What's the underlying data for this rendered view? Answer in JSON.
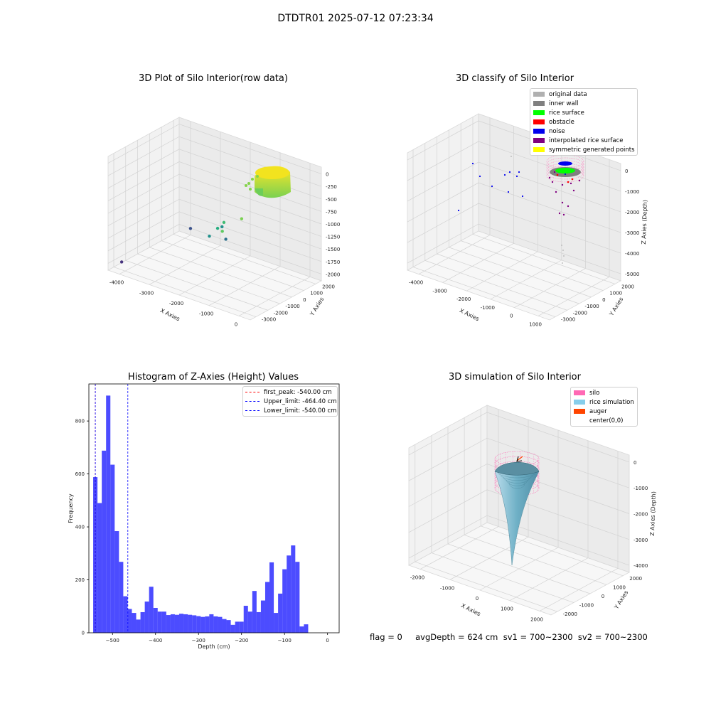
{
  "suptitle": "DTDTR01 2025-07-12 07:23:34",
  "footer": "flag = 0     avgDepth = 624 cm  sv1 = 700~2300  sv2 = 700~2300",
  "chart_data": [
    {
      "type": "scatter3d",
      "title": "3D Plot of Silo Interior(row data)",
      "xlabel": "X Axies",
      "ylabel": "Y Axies",
      "zlabel": "Z Axies (Depth)",
      "x_ticks": [
        "-4000",
        "-3000",
        "-2000",
        "-1000",
        "0"
      ],
      "y_ticks": [
        "2000",
        "1000",
        "0",
        "-1000",
        "-2000",
        "-3000"
      ],
      "z_ticks": [
        "0",
        "-250",
        "-500",
        "-750",
        "-1000",
        "-1250",
        "-1500",
        "-1750",
        "-2000"
      ],
      "colormap": "viridis",
      "points": [
        {
          "x": -4200,
          "y": -2800,
          "z": -2400,
          "color": "#46327e"
        },
        {
          "x": -3700,
          "y": 1500,
          "z": -2200,
          "color": "#3b528b"
        },
        {
          "x": -2500,
          "y": 300,
          "z": -1900,
          "color": "#21918c"
        },
        {
          "x": -2300,
          "y": 500,
          "z": -1700,
          "color": "#28ae80"
        },
        {
          "x": -2100,
          "y": 400,
          "z": -1600,
          "color": "#21918c"
        },
        {
          "x": -2000,
          "y": 200,
          "z": -1650,
          "color": "#5ec962"
        },
        {
          "x": -1900,
          "y": 100,
          "z": -1400,
          "color": "#3fbc73"
        },
        {
          "x": -1700,
          "y": -200,
          "z": -1700,
          "color": "#2c728e"
        },
        {
          "x": -1500,
          "y": 600,
          "z": -1300,
          "color": "#7ad151"
        }
      ]
    },
    {
      "type": "scatter3d",
      "title": "3D classify of Silo Interior",
      "xlabel": "X Axies",
      "ylabel": "Y Axies",
      "zlabel": "Z Axies (Depth)",
      "x_ticks": [
        "-4000",
        "-3000",
        "-2000",
        "-1000",
        "0",
        "1000"
      ],
      "y_ticks": [
        "2000",
        "1000",
        "0",
        "-1000",
        "-2000",
        "-3000"
      ],
      "z_ticks": [
        "0",
        "-1000",
        "-2000",
        "-3000",
        "-4000",
        "-5000"
      ],
      "legend": [
        {
          "label": "original data",
          "color": "#b0b0b0"
        },
        {
          "label": "inner wall",
          "color": "#808080"
        },
        {
          "label": "rice surface",
          "color": "#00ff00"
        },
        {
          "label": "obstacle",
          "color": "#ff0000"
        },
        {
          "label": "noise",
          "color": "#0000ee"
        },
        {
          "label": "interpolated rice surface",
          "color": "#800080"
        },
        {
          "label": "symmetric generated points",
          "color": "#ffff00"
        }
      ]
    },
    {
      "type": "bar",
      "title": "Histogram of Z-Axies (Height) Values",
      "xlabel": "Depth (cm)",
      "ylabel": "Frequency",
      "xlim": [
        -555,
        27
      ],
      "ylim": [
        0,
        940
      ],
      "x_ticks": [
        -500,
        -400,
        -300,
        -200,
        -100,
        0
      ],
      "y_ticks": [
        0,
        200,
        400,
        600,
        800
      ],
      "bin_width": 10,
      "bar_color": "#0000ff",
      "bins": [
        {
          "x": -540,
          "v": 588
        },
        {
          "x": -530,
          "v": 490
        },
        {
          "x": -520,
          "v": 688
        },
        {
          "x": -510,
          "v": 896
        },
        {
          "x": -500,
          "v": 635
        },
        {
          "x": -490,
          "v": 384
        },
        {
          "x": -480,
          "v": 268
        },
        {
          "x": -470,
          "v": 138
        },
        {
          "x": -460,
          "v": 90
        },
        {
          "x": -450,
          "v": 75
        },
        {
          "x": -440,
          "v": 50
        },
        {
          "x": -430,
          "v": 78
        },
        {
          "x": -420,
          "v": 118
        },
        {
          "x": -410,
          "v": 174
        },
        {
          "x": -400,
          "v": 94
        },
        {
          "x": -390,
          "v": 80
        },
        {
          "x": -380,
          "v": 80
        },
        {
          "x": -370,
          "v": 67
        },
        {
          "x": -360,
          "v": 70
        },
        {
          "x": -350,
          "v": 68
        },
        {
          "x": -340,
          "v": 72
        },
        {
          "x": -330,
          "v": 70
        },
        {
          "x": -320,
          "v": 68
        },
        {
          "x": -310,
          "v": 66
        },
        {
          "x": -300,
          "v": 63
        },
        {
          "x": -290,
          "v": 60
        },
        {
          "x": -280,
          "v": 62
        },
        {
          "x": -270,
          "v": 70
        },
        {
          "x": -260,
          "v": 62
        },
        {
          "x": -250,
          "v": 60
        },
        {
          "x": -240,
          "v": 52
        },
        {
          "x": -230,
          "v": 48
        },
        {
          "x": -220,
          "v": 30
        },
        {
          "x": -210,
          "v": 42
        },
        {
          "x": -200,
          "v": 42
        },
        {
          "x": -190,
          "v": 102
        },
        {
          "x": -180,
          "v": 80
        },
        {
          "x": -170,
          "v": 158
        },
        {
          "x": -160,
          "v": 78
        },
        {
          "x": -150,
          "v": 122
        },
        {
          "x": -140,
          "v": 192
        },
        {
          "x": -130,
          "v": 266
        },
        {
          "x": -120,
          "v": 75
        },
        {
          "x": -110,
          "v": 148
        },
        {
          "x": -100,
          "v": 240
        },
        {
          "x": -90,
          "v": 292
        },
        {
          "x": -80,
          "v": 330
        },
        {
          "x": -70,
          "v": 268
        },
        {
          "x": -60,
          "v": 24
        },
        {
          "x": -50,
          "v": 32
        }
      ],
      "vlines": [
        {
          "label": "first_peak: -540.00 cm",
          "x": -540,
          "color": "#ff0000"
        },
        {
          "label": "Upper_limit: -464.40 cm",
          "x": -464.4,
          "color": "#0000ff"
        },
        {
          "label": "Lower_limit: -540.00 cm",
          "x": -540,
          "color": "#0000ff"
        }
      ]
    },
    {
      "type": "surface3d",
      "title": "3D simulation of Silo Interior",
      "xlabel": "X Axies",
      "ylabel": "Y Axies",
      "zlabel": "Z Axies (Depth)",
      "x_ticks": [
        "-2000",
        "-1000",
        "0",
        "1000",
        "2000"
      ],
      "y_ticks": [
        "2000",
        "1000",
        "0",
        "-1000",
        "-2000"
      ],
      "z_ticks": [
        "0",
        "-1000",
        "-2000",
        "-3000",
        "-4000"
      ],
      "legend": [
        {
          "label": "silo",
          "color": "#ff69b4"
        },
        {
          "label": "rice simulation",
          "color": "#87ceeb"
        },
        {
          "label": "auger",
          "color": "#ff4500"
        },
        {
          "label": "center(0,0)",
          "color": ""
        }
      ]
    }
  ]
}
